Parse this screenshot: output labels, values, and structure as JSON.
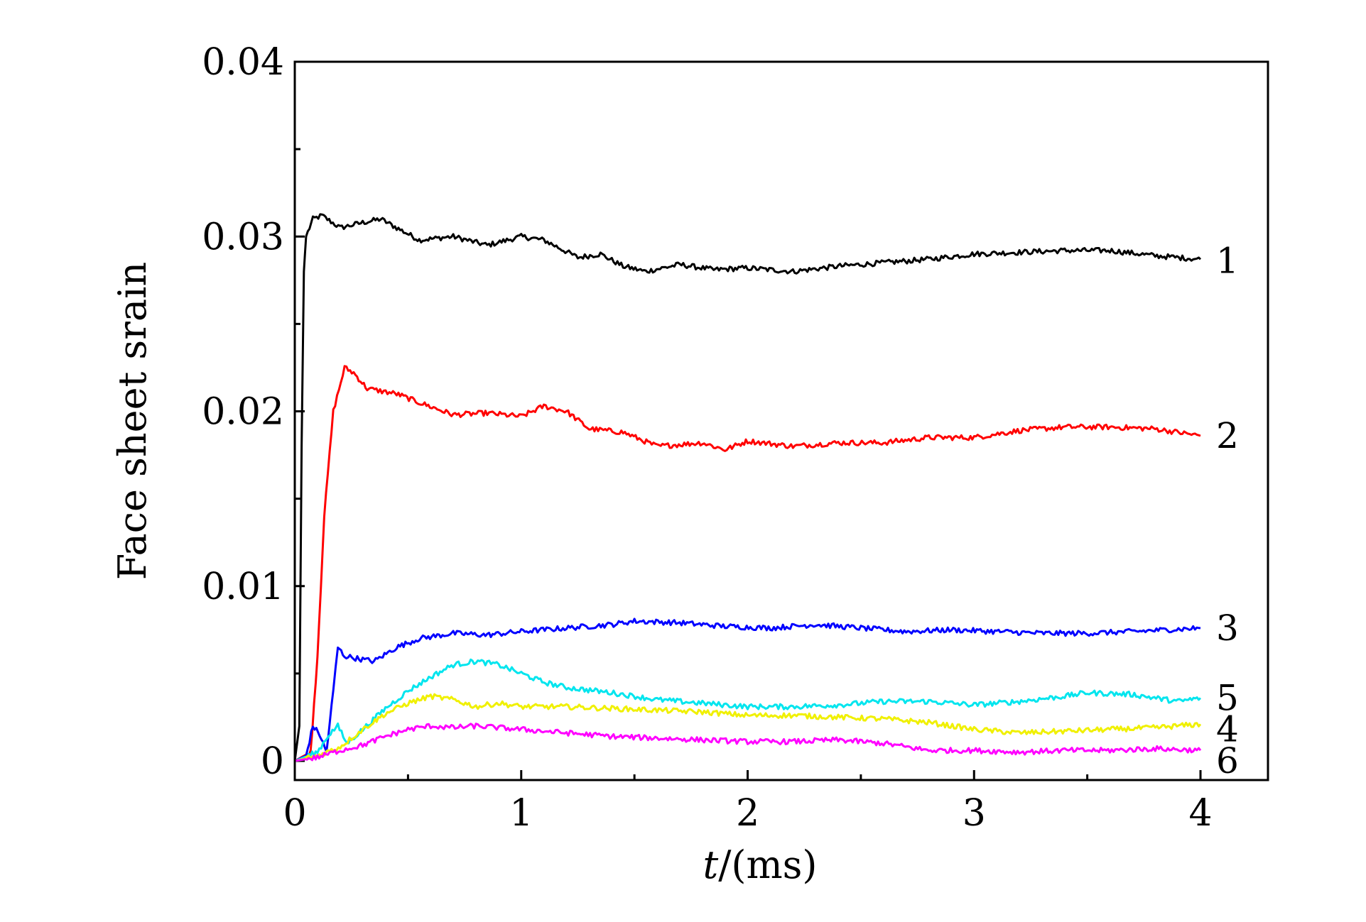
{
  "chart_data": {
    "type": "line",
    "title": "",
    "xlabel_italic": "t",
    "xlabel_rest": "/(ms)",
    "ylabel": "Face sheet srain",
    "xlim": [
      0,
      4
    ],
    "ylim": [
      0,
      0.04
    ],
    "x_ticks": [
      0,
      1,
      2,
      3,
      4
    ],
    "x_tick_labels": [
      "0",
      "1",
      "2",
      "3",
      "4"
    ],
    "y_ticks": [
      0,
      0.01,
      0.02,
      0.03,
      0.04
    ],
    "y_tick_labels": [
      "0",
      "0.01",
      "0.02",
      "0.03",
      "0.04"
    ],
    "grid": false,
    "legend": "none",
    "series": [
      {
        "label": "1",
        "color": "#000000",
        "points": [
          [
            0,
            0
          ],
          [
            0.02,
            0.002
          ],
          [
            0.03,
            0.018
          ],
          [
            0.04,
            0.028
          ],
          [
            0.05,
            0.03
          ],
          [
            0.08,
            0.031
          ],
          [
            0.12,
            0.0312
          ],
          [
            0.2,
            0.0305
          ],
          [
            0.3,
            0.0308
          ],
          [
            0.38,
            0.031
          ],
          [
            0.45,
            0.0305
          ],
          [
            0.55,
            0.0298
          ],
          [
            0.7,
            0.03
          ],
          [
            0.85,
            0.0295
          ],
          [
            1.0,
            0.03
          ],
          [
            1.1,
            0.0298
          ],
          [
            1.25,
            0.0288
          ],
          [
            1.35,
            0.029
          ],
          [
            1.45,
            0.0283
          ],
          [
            1.55,
            0.028
          ],
          [
            1.7,
            0.0284
          ],
          [
            1.85,
            0.0281
          ],
          [
            2.0,
            0.0282
          ],
          [
            2.2,
            0.028
          ],
          [
            2.4,
            0.0283
          ],
          [
            2.6,
            0.0285
          ],
          [
            2.8,
            0.0287
          ],
          [
            3.0,
            0.029
          ],
          [
            3.2,
            0.0291
          ],
          [
            3.4,
            0.0292
          ],
          [
            3.6,
            0.0292
          ],
          [
            3.8,
            0.0289
          ],
          [
            4.0,
            0.0287
          ]
        ]
      },
      {
        "label": "2",
        "color": "#ff0000",
        "points": [
          [
            0,
            0
          ],
          [
            0.07,
            0.0005
          ],
          [
            0.1,
            0.006
          ],
          [
            0.13,
            0.014
          ],
          [
            0.17,
            0.02
          ],
          [
            0.22,
            0.0225
          ],
          [
            0.26,
            0.0222
          ],
          [
            0.32,
            0.0213
          ],
          [
            0.45,
            0.021
          ],
          [
            0.55,
            0.0205
          ],
          [
            0.7,
            0.0198
          ],
          [
            0.85,
            0.0199
          ],
          [
            1.0,
            0.0197
          ],
          [
            1.1,
            0.0203
          ],
          [
            1.2,
            0.02
          ],
          [
            1.3,
            0.019
          ],
          [
            1.45,
            0.0188
          ],
          [
            1.6,
            0.018
          ],
          [
            1.8,
            0.0182
          ],
          [
            1.9,
            0.0178
          ],
          [
            2.0,
            0.0183
          ],
          [
            2.2,
            0.018
          ],
          [
            2.4,
            0.0182
          ],
          [
            2.6,
            0.0182
          ],
          [
            2.8,
            0.0185
          ],
          [
            3.0,
            0.0185
          ],
          [
            3.2,
            0.0189
          ],
          [
            3.4,
            0.0191
          ],
          [
            3.6,
            0.0191
          ],
          [
            3.8,
            0.019
          ],
          [
            4.0,
            0.0186
          ]
        ]
      },
      {
        "label": "3",
        "color": "#0000ff",
        "points": [
          [
            0,
            0
          ],
          [
            0.05,
            0.0003
          ],
          [
            0.08,
            0.002
          ],
          [
            0.11,
            0.0015
          ],
          [
            0.14,
            0.0005
          ],
          [
            0.17,
            0.004
          ],
          [
            0.19,
            0.0065
          ],
          [
            0.22,
            0.006
          ],
          [
            0.3,
            0.0058
          ],
          [
            0.35,
            0.0057
          ],
          [
            0.45,
            0.0065
          ],
          [
            0.55,
            0.007
          ],
          [
            0.7,
            0.0073
          ],
          [
            0.85,
            0.0072
          ],
          [
            1.0,
            0.0074
          ],
          [
            1.2,
            0.0076
          ],
          [
            1.4,
            0.0078
          ],
          [
            1.5,
            0.008
          ],
          [
            1.7,
            0.0079
          ],
          [
            1.9,
            0.0077
          ],
          [
            2.1,
            0.0076
          ],
          [
            2.3,
            0.0078
          ],
          [
            2.5,
            0.0076
          ],
          [
            2.7,
            0.0074
          ],
          [
            2.9,
            0.0075
          ],
          [
            3.1,
            0.0074
          ],
          [
            3.3,
            0.0073
          ],
          [
            3.5,
            0.0073
          ],
          [
            3.7,
            0.0074
          ],
          [
            4.0,
            0.0076
          ]
        ]
      },
      {
        "label": "5",
        "color": "#00e5ee",
        "points": [
          [
            0,
            0
          ],
          [
            0.1,
            0.0005
          ],
          [
            0.15,
            0.0015
          ],
          [
            0.19,
            0.002
          ],
          [
            0.23,
            0.001
          ],
          [
            0.3,
            0.0018
          ],
          [
            0.4,
            0.003
          ],
          [
            0.5,
            0.004
          ],
          [
            0.6,
            0.0048
          ],
          [
            0.7,
            0.0055
          ],
          [
            0.8,
            0.0057
          ],
          [
            0.9,
            0.0055
          ],
          [
            1.0,
            0.005
          ],
          [
            1.1,
            0.0045
          ],
          [
            1.2,
            0.0042
          ],
          [
            1.4,
            0.0039
          ],
          [
            1.6,
            0.0035
          ],
          [
            1.8,
            0.0033
          ],
          [
            2.0,
            0.0031
          ],
          [
            2.2,
            0.0031
          ],
          [
            2.4,
            0.0032
          ],
          [
            2.6,
            0.0034
          ],
          [
            2.8,
            0.0034
          ],
          [
            3.0,
            0.0032
          ],
          [
            3.2,
            0.0034
          ],
          [
            3.4,
            0.0037
          ],
          [
            3.5,
            0.0039
          ],
          [
            3.7,
            0.0038
          ],
          [
            3.9,
            0.0034
          ],
          [
            4.0,
            0.0036
          ]
        ]
      },
      {
        "label": "4",
        "color": "#f0f000",
        "points": [
          [
            0,
            0
          ],
          [
            0.1,
            0.0003
          ],
          [
            0.2,
            0.0008
          ],
          [
            0.3,
            0.0018
          ],
          [
            0.4,
            0.0027
          ],
          [
            0.5,
            0.0033
          ],
          [
            0.6,
            0.0037
          ],
          [
            0.7,
            0.0035
          ],
          [
            0.8,
            0.0031
          ],
          [
            0.9,
            0.0033
          ],
          [
            1.0,
            0.0031
          ],
          [
            1.2,
            0.0031
          ],
          [
            1.4,
            0.003
          ],
          [
            1.6,
            0.0029
          ],
          [
            1.8,
            0.0028
          ],
          [
            2.0,
            0.0026
          ],
          [
            2.2,
            0.0026
          ],
          [
            2.4,
            0.0025
          ],
          [
            2.6,
            0.0024
          ],
          [
            2.8,
            0.0022
          ],
          [
            3.0,
            0.0018
          ],
          [
            3.2,
            0.0016
          ],
          [
            3.4,
            0.0017
          ],
          [
            3.6,
            0.0018
          ],
          [
            3.8,
            0.0019
          ],
          [
            4.0,
            0.0021
          ]
        ]
      },
      {
        "label": "6",
        "color": "#ff00ff",
        "points": [
          [
            0,
            0
          ],
          [
            0.1,
            0.0002
          ],
          [
            0.2,
            0.0006
          ],
          [
            0.3,
            0.0009
          ],
          [
            0.4,
            0.0014
          ],
          [
            0.5,
            0.0018
          ],
          [
            0.6,
            0.002
          ],
          [
            0.7,
            0.0019
          ],
          [
            0.8,
            0.002
          ],
          [
            0.9,
            0.0019
          ],
          [
            1.0,
            0.0018
          ],
          [
            1.2,
            0.0016
          ],
          [
            1.4,
            0.0014
          ],
          [
            1.6,
            0.0013
          ],
          [
            1.8,
            0.0012
          ],
          [
            2.0,
            0.0011
          ],
          [
            2.2,
            0.0011
          ],
          [
            2.4,
            0.0012
          ],
          [
            2.6,
            0.001
          ],
          [
            2.8,
            0.0006
          ],
          [
            3.0,
            0.0006
          ],
          [
            3.2,
            0.0005
          ],
          [
            3.4,
            0.0006
          ],
          [
            3.6,
            0.0006
          ],
          [
            3.8,
            0.0007
          ],
          [
            4.0,
            0.0006
          ]
        ]
      }
    ]
  }
}
